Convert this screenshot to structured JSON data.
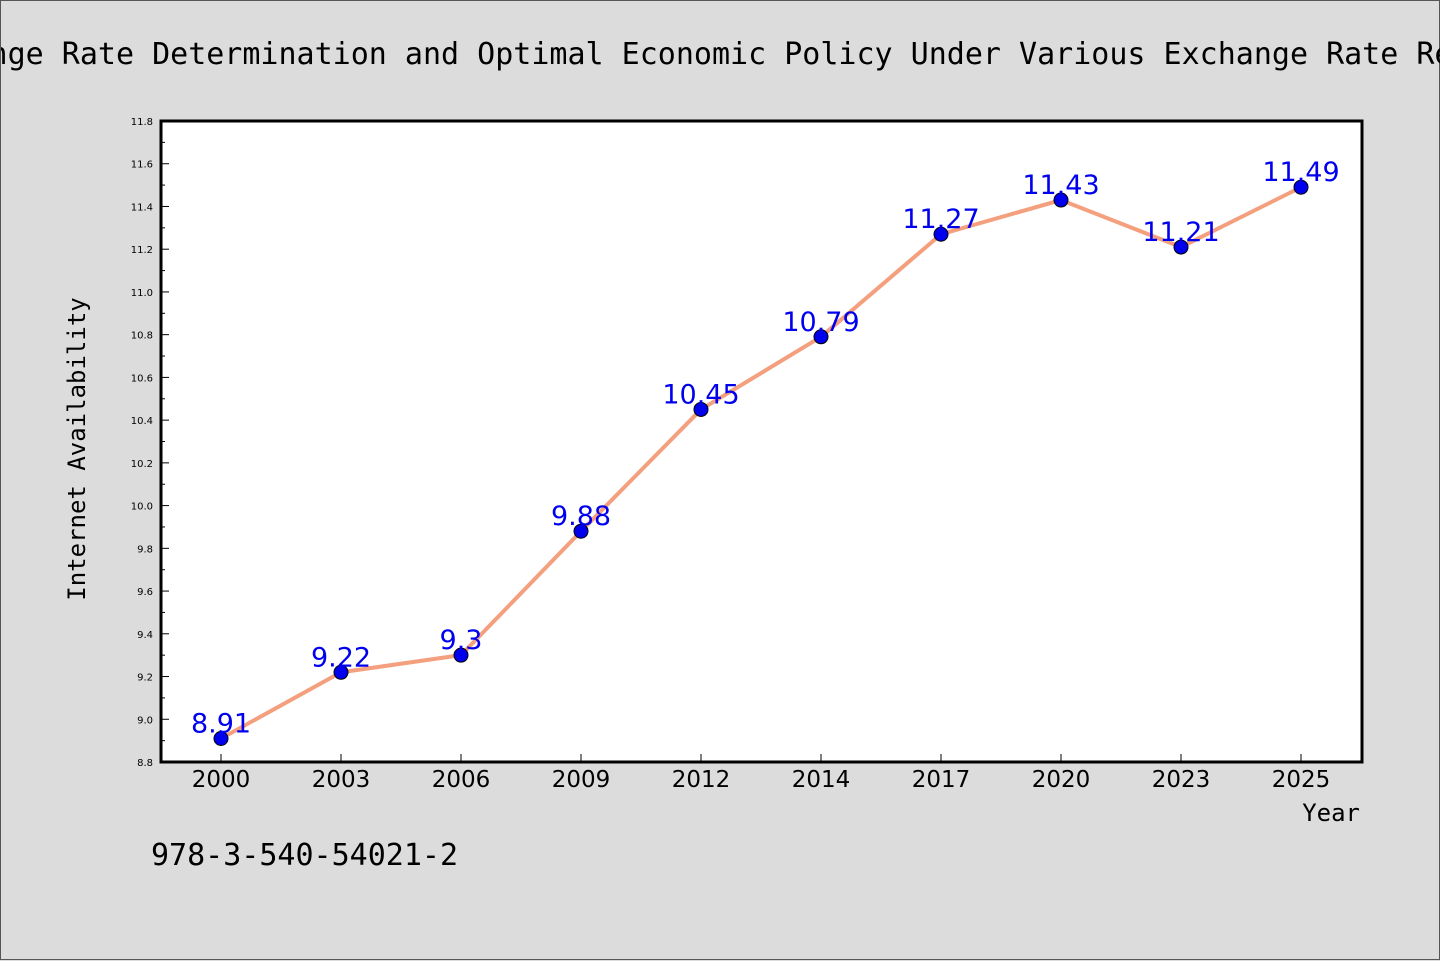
{
  "chart_data": {
    "type": "line",
    "title": "Exchange Rate Determination and Optimal Economic Policy Under Various Exchange Rate Regimes",
    "xlabel": "Year",
    "ylabel": "Internet Availability",
    "categories": [
      "2000",
      "2003",
      "2006",
      "2009",
      "2012",
      "2014",
      "2017",
      "2020",
      "2023",
      "2025"
    ],
    "series": [
      {
        "values": [
          8.91,
          9.22,
          9.3,
          9.88,
          10.45,
          10.79,
          11.27,
          11.43,
          11.21,
          11.49
        ],
        "data_labels": [
          "8.91",
          "9.22",
          "9.3",
          "9.88",
          "10.45",
          "10.79",
          "11.27",
          "11.43",
          "11.21",
          "11.49"
        ]
      }
    ],
    "ylim": [
      8.8,
      11.8
    ],
    "yticks": [
      "8.8",
      "9.0",
      "9.2",
      "9.4",
      "9.6",
      "9.8",
      "10.0",
      "10.2",
      "10.4",
      "10.6",
      "10.8",
      "11.0",
      "11.2",
      "11.4",
      "11.6",
      "11.8"
    ],
    "grid": false,
    "colors": {
      "line": "#f4a07e",
      "marker": "#0000ee",
      "label": "#0000ee"
    }
  },
  "annotation": "978-3-540-54021-2"
}
